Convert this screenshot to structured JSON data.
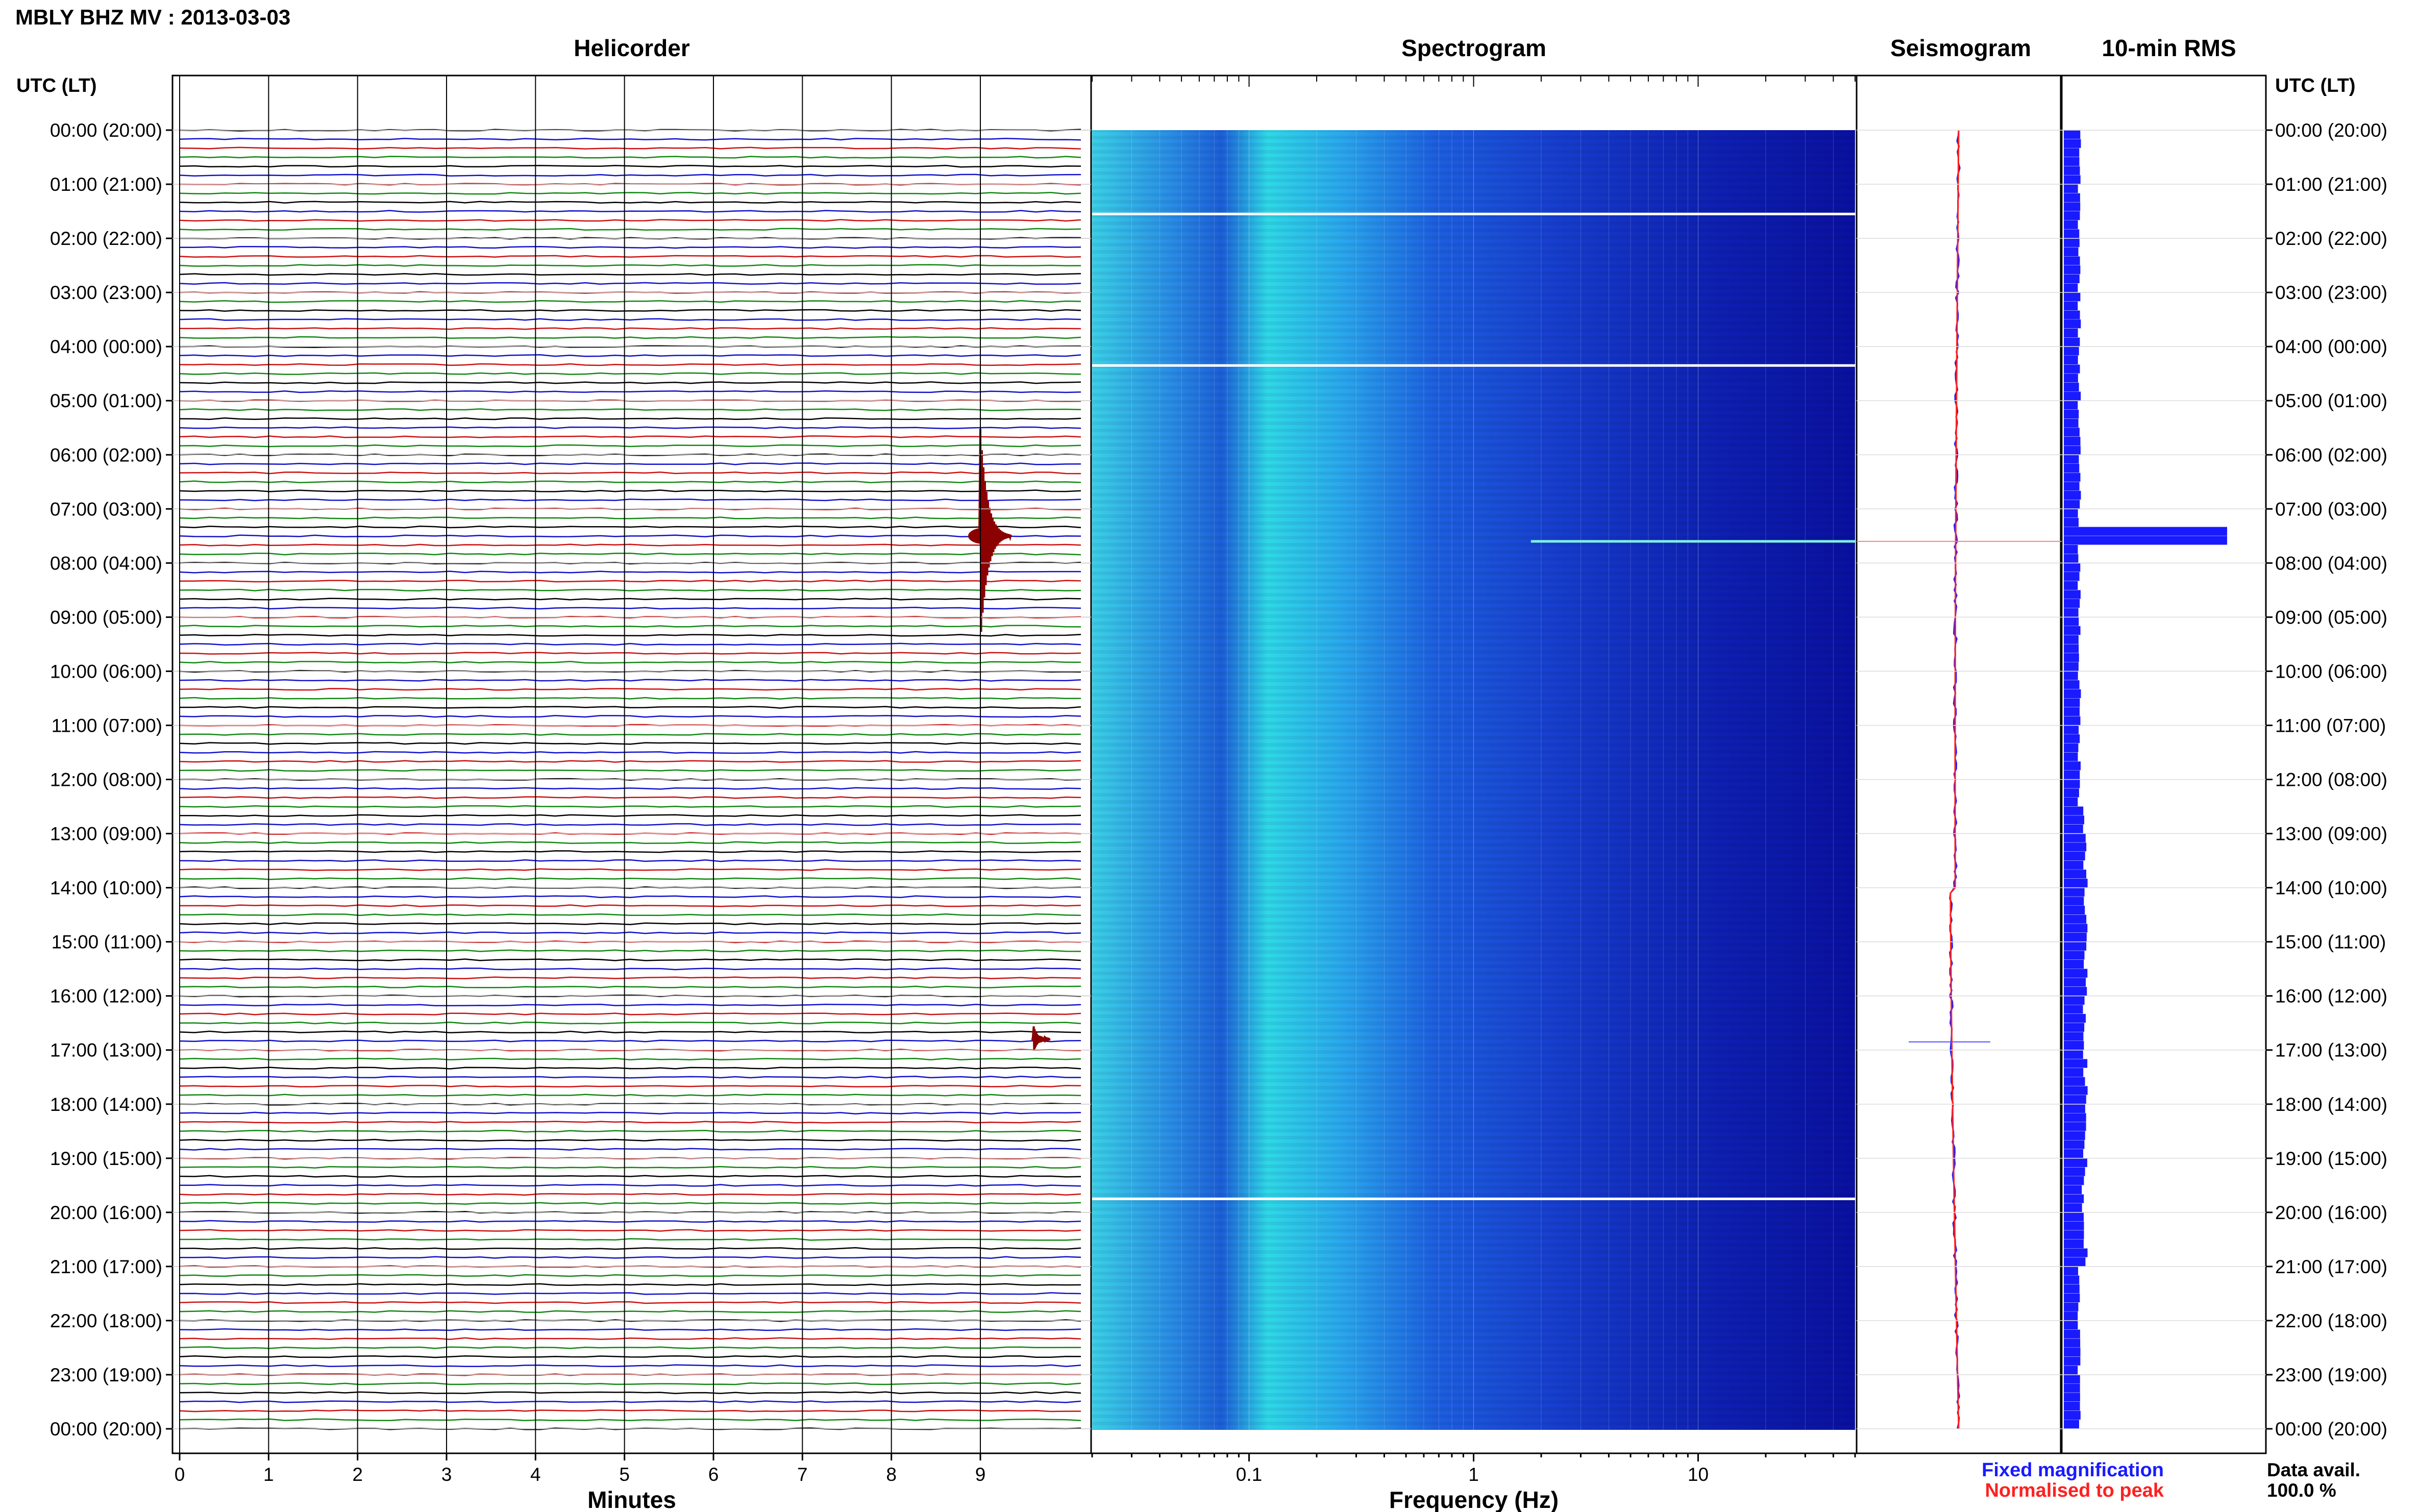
{
  "header": {
    "title": "MBLY BHZ MV : 2013-03-03"
  },
  "panels": {
    "helicorder": "Helicorder",
    "spectrogram": "Spectrogram",
    "seismogram": "Seismogram",
    "rms": "10-min RMS"
  },
  "axes": {
    "left_label": "UTC (LT)",
    "right_label": "UTC (LT)",
    "helicorder_xlabel": "Minutes",
    "spectrogram_xlabel": "Frequency (Hz)"
  },
  "legend": {
    "fixed": "Fixed magnification",
    "normalised": "Normalised to peak"
  },
  "data_availability": {
    "label": "Data avail.",
    "value": "100.0 %"
  },
  "colors": {
    "trace_cycle": [
      "#000000",
      "#1111cc",
      "#cc1111",
      "#118811"
    ],
    "spectrogram_low": "#0a10a8",
    "spectrogram_high": "#2fd8e8",
    "seismogram_fixed": "#1a1aff",
    "seismogram_normalised": "#ff2020",
    "rms_bar": "#1a1aff"
  },
  "chart_data": [
    {
      "type": "line",
      "title": "Helicorder",
      "xlabel": "Minutes",
      "ylabel": "UTC (LT)",
      "x_ticks": [
        0,
        1,
        2,
        3,
        4,
        5,
        6,
        7,
        8,
        9
      ],
      "xlim": [
        0,
        10
      ],
      "y_ticks": [
        "00:00 (20:00)",
        "01:00 (21:00)",
        "02:00 (22:00)",
        "03:00 (23:00)",
        "04:00 (00:00)",
        "05:00 (01:00)",
        "06:00 (02:00)",
        "07:00 (03:00)",
        "08:00 (04:00)",
        "09:00 (05:00)",
        "10:00 (06:00)",
        "11:00 (07:00)",
        "12:00 (08:00)",
        "13:00 (09:00)",
        "14:00 (10:00)",
        "15:00 (11:00)",
        "16:00 (12:00)",
        "17:00 (13:00)",
        "18:00 (14:00)",
        "19:00 (15:00)",
        "20:00 (16:00)",
        "21:00 (17:00)",
        "22:00 (18:00)",
        "23:00 (19:00)",
        "00:00 (20:00)"
      ],
      "lines_per_hour": 6,
      "events": [
        {
          "hour": 7.5,
          "minute": 9.0,
          "relative_amplitude": 1.0
        },
        {
          "hour": 16.8,
          "minute": 9.6,
          "relative_amplitude": 0.12
        }
      ],
      "grid": true
    },
    {
      "type": "heatmap",
      "title": "Spectrogram",
      "xlabel": "Frequency (Hz)",
      "x_scale": "log",
      "x_ticks": [
        0.1,
        1,
        10
      ],
      "xlim": [
        0.02,
        50
      ],
      "y_range_hours": [
        0,
        24
      ],
      "gaps_hours": [
        1.55,
        4.35,
        19.75
      ],
      "spectral_line": {
        "hour": 7.6,
        "from_hz": 1.8,
        "to_hz": 50
      }
    },
    {
      "type": "line",
      "title": "Seismogram",
      "series": [
        {
          "name": "Fixed magnification",
          "note": "blue trace"
        },
        {
          "name": "Normalised to peak",
          "note": "red trace"
        }
      ],
      "event_hours": [
        7.6,
        16.85
      ]
    },
    {
      "type": "bar",
      "title": "10-min RMS",
      "orientation": "horizontal",
      "bin_minutes": 10,
      "peak": {
        "hour": 7.5,
        "relative_value": 1.0
      },
      "secondary": {
        "hour": 16.8,
        "relative_value": 0.12
      }
    }
  ]
}
